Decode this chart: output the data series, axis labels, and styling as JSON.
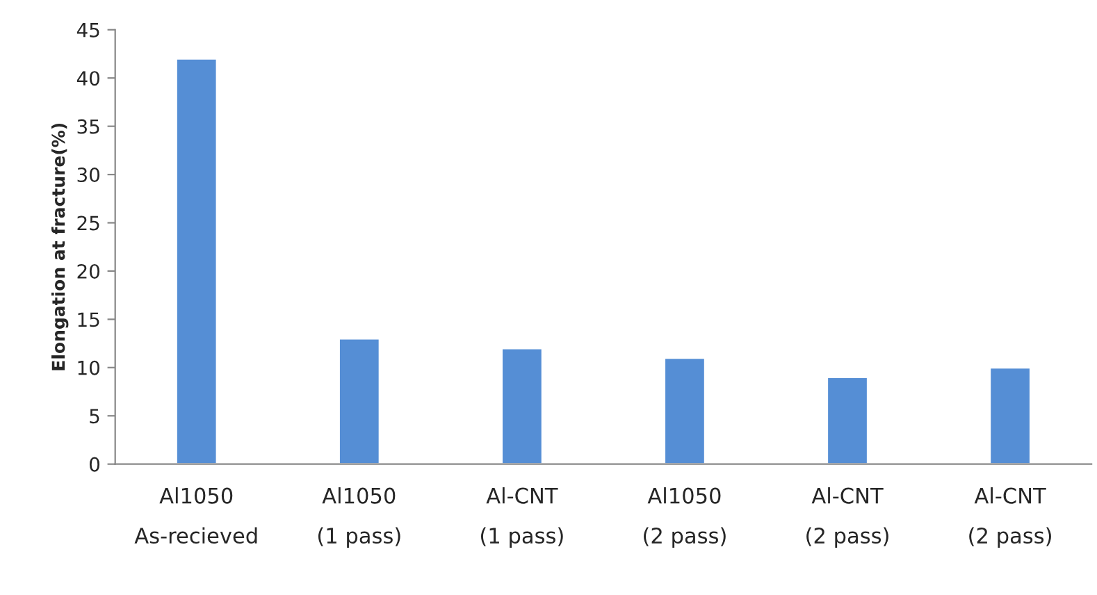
{
  "chart_data": {
    "type": "bar",
    "ylabel": "Elongation at fracture(%)",
    "categories": [
      "Al1050\nAs-recieved",
      "Al1050\n(1 pass)",
      "Al-CNT\n(1 pass)",
      "Al1050\n(2 pass)",
      "Al-CNT\n(2 pass)",
      "Al-CNT\n(2 pass)"
    ],
    "values": [
      42,
      13,
      12,
      11,
      9,
      10
    ],
    "color": "#558ed5",
    "ylim": [
      0,
      45
    ],
    "yticks": [
      0,
      5,
      10,
      15,
      20,
      25,
      30,
      35,
      40,
      45
    ],
    "grid": false,
    "legend": false
  }
}
